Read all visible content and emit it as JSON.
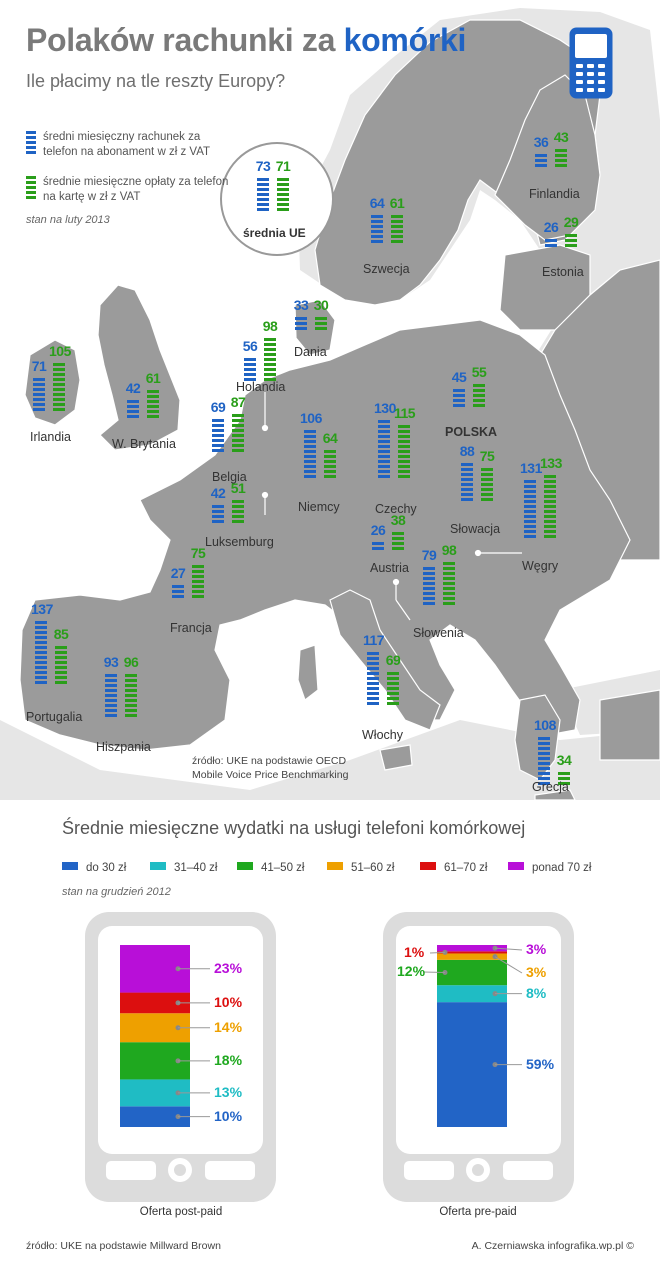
{
  "header": {
    "title_main": "Polaków rachunki za ",
    "title_highlight": "komórki",
    "subtitle": "Ile płacimy na tle reszty Europy?"
  },
  "legend": {
    "blue": "średni miesięczny rachunek za telefon na abonament w zł z VAT",
    "green": "średnie miesięczne opłaty za telefon na kartę w zł z VAT",
    "date_note": "stan na luty 2013"
  },
  "colors": {
    "blue": "#1f63c4",
    "green": "#2a9e1a",
    "map_land": "#9b9b9b",
    "title_gray": "#7a7a7a"
  },
  "chart_data": [
    {
      "type": "bar",
      "series": [
        {
          "name": "średni miesięczny rachunek za telefon na abonament w zł z VAT",
          "color": "#1f63c4"
        },
        {
          "name": "średnie miesięczne opłaty za telefon na kartę w zł z VAT",
          "color": "#2a9e1a"
        }
      ],
      "average": {
        "label": "średnia UE",
        "postpaid": 73,
        "prepaid": 71
      },
      "countries": [
        {
          "name": "Finlandia",
          "postpaid": 36,
          "prepaid": 43
        },
        {
          "name": "Szwecja",
          "postpaid": 64,
          "prepaid": 61
        },
        {
          "name": "Estonia",
          "postpaid": 26,
          "prepaid": 29
        },
        {
          "name": "Dania",
          "postpaid": 33,
          "prepaid": 30
        },
        {
          "name": "Holandia",
          "postpaid": 56,
          "prepaid": 98
        },
        {
          "name": "Irlandia",
          "postpaid": 71,
          "prepaid": 105
        },
        {
          "name": "W. Brytania",
          "postpaid": 42,
          "prepaid": 61
        },
        {
          "name": "Belgia",
          "postpaid": 69,
          "prepaid": 87
        },
        {
          "name": "Niemcy",
          "postpaid": 106,
          "prepaid": 64
        },
        {
          "name": "Czechy",
          "postpaid": 130,
          "prepaid": 115
        },
        {
          "name": "POLSKA",
          "postpaid": 45,
          "prepaid": 55
        },
        {
          "name": "Słowacja",
          "postpaid": 88,
          "prepaid": 75
        },
        {
          "name": "Węgry",
          "postpaid": 131,
          "prepaid": 133
        },
        {
          "name": "Luksemburg",
          "postpaid": 42,
          "prepaid": 51
        },
        {
          "name": "Austria",
          "postpaid": 26,
          "prepaid": 38
        },
        {
          "name": "Francja",
          "postpaid": 27,
          "prepaid": 75
        },
        {
          "name": "Słowenia",
          "postpaid": 79,
          "prepaid": 98
        },
        {
          "name": "Portugalia",
          "postpaid": 137,
          "prepaid": 85
        },
        {
          "name": "Hiszpania",
          "postpaid": 93,
          "prepaid": 96
        },
        {
          "name": "Włochy",
          "postpaid": 117,
          "prepaid": 69
        },
        {
          "name": "Grecja",
          "postpaid": 108,
          "prepaid": 34
        }
      ],
      "source": "źródło: UKE na podstawie OECD Mobile Voice Price Benchmarking"
    },
    {
      "type": "bar",
      "stacked": true,
      "title": "Średnie miesięczne wydatki na usługi telefoni komórkowej",
      "date_note": "stan na grudzień 2012",
      "categories": [
        {
          "label": "do 30 zł",
          "color": "#2264c6"
        },
        {
          "label": "31–40 zł",
          "color": "#1fbcc4"
        },
        {
          "label": "41–50 zł",
          "color": "#1fa81f"
        },
        {
          "label": "51–60 zł",
          "color": "#eea000"
        },
        {
          "label": "61–70 zł",
          "color": "#dc0f0f"
        },
        {
          "label": "ponad 70 zł",
          "color": "#b80fd8"
        }
      ],
      "series": [
        {
          "name": "Oferta post-paid",
          "values": [
            10,
            13,
            18,
            14,
            10,
            23
          ],
          "labels": [
            "10%",
            "13%",
            "18%",
            "14%",
            "10%",
            "23%"
          ]
        },
        {
          "name": "Oferta pre-paid",
          "values": [
            59,
            8,
            12,
            3,
            1,
            3
          ],
          "labels": [
            "59%",
            "8%",
            "12%",
            "3%",
            "1%",
            "3%"
          ]
        }
      ],
      "source": "źródło: UKE na podstawie Millward Brown"
    }
  ],
  "footer": {
    "credit": "A. Czerniawska infografika.wp.pl ©"
  }
}
